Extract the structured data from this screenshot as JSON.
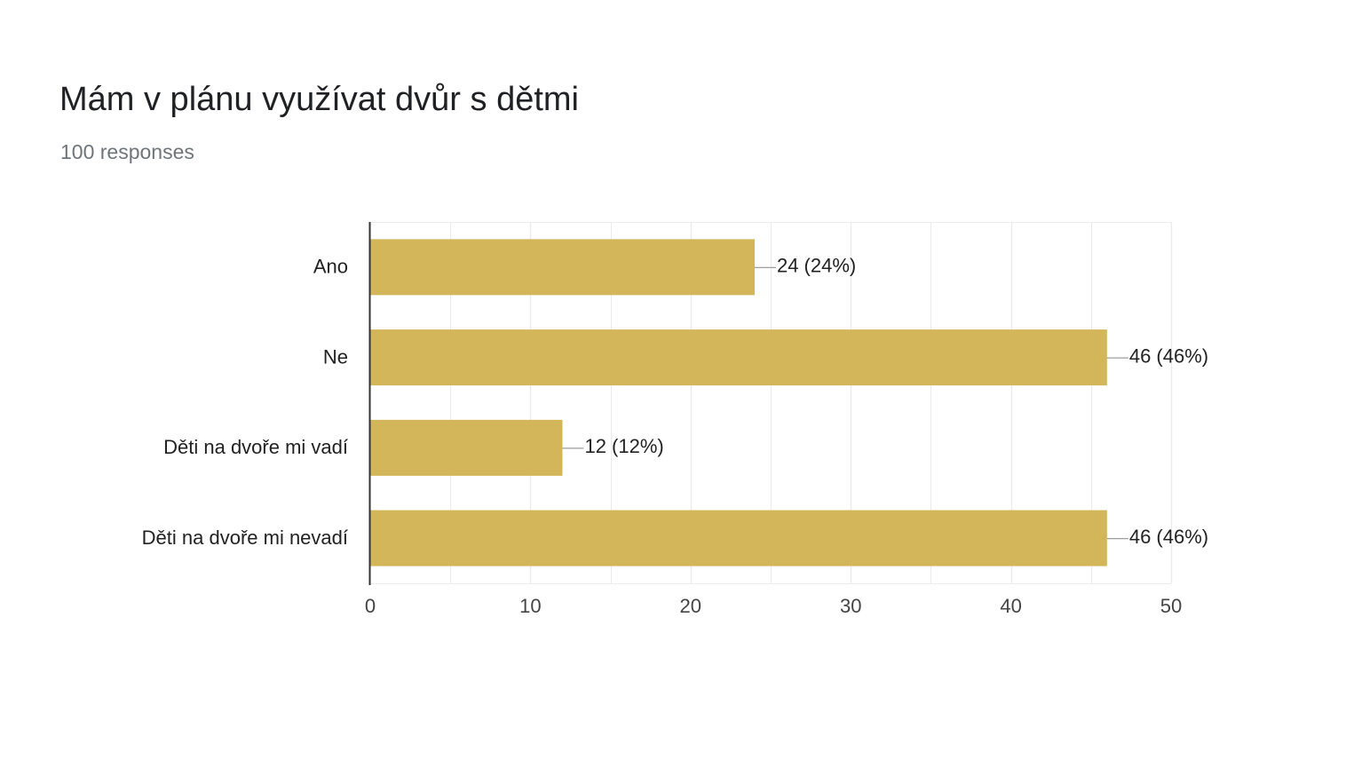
{
  "question": {
    "title": "Mám v plánu využívat dvůr s dětmi",
    "responses": "100 responses"
  },
  "colors": {
    "bar": "#d3b65a",
    "grid": "#ebebeb",
    "axis": "#333333",
    "leader": "#9e9e9e",
    "text": "#222222",
    "tick_text": "#444444"
  },
  "chart_data": {
    "type": "bar",
    "orientation": "horizontal",
    "categories": [
      "Ano",
      "Ne",
      "Děti na dvoře mi vadí",
      "Děti na dvoře mi nevadí"
    ],
    "values": [
      24,
      46,
      12,
      46
    ],
    "data_labels": [
      "24 (24%)",
      "46 (46%)",
      "12 (12%)",
      "46 (46%)"
    ],
    "xlim": [
      0,
      50
    ],
    "x_ticks": [
      0,
      10,
      20,
      30,
      40,
      50
    ],
    "minor_grid_step": 5,
    "grid": true,
    "legend": "none",
    "title": "",
    "xlabel": "",
    "ylabel": ""
  }
}
